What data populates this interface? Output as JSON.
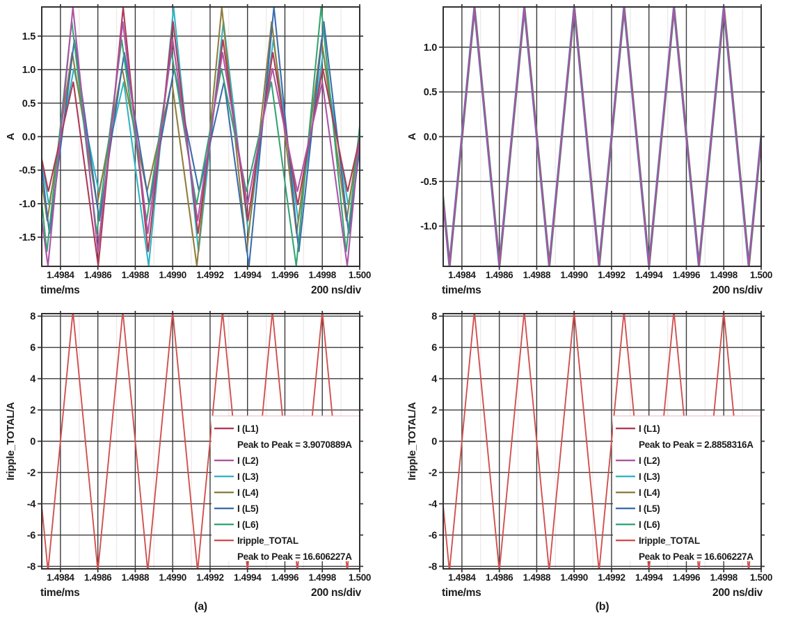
{
  "figure": {
    "background": "#ffffff"
  },
  "palette": {
    "L1": "#ae3a57",
    "L2": "#ab55a6",
    "L3": "#30b5c3",
    "L4": "#8f7e3e",
    "L5": "#3c6dad",
    "L6": "#35a474",
    "total": "#d0504e",
    "axis": "#303030",
    "grid_major": "#3a3a3a",
    "grid_minor": "#f0eaea",
    "text": "#1b1b1b",
    "legend_edge": "#edbcc0",
    "background": "#ffffff"
  },
  "axes_common": {
    "xlabel": "time/ms",
    "x_div_label": "200 ns/div",
    "xlim": [
      1.4983,
      1.5
    ],
    "xtick_values": [
      1.4984,
      1.4986,
      1.4988,
      1.499,
      1.4992,
      1.4994,
      1.4996,
      1.4998,
      1.5
    ],
    "xtick_labels": [
      "1.4984",
      "1.4986",
      "1.4988",
      "1.4990",
      "1.4992",
      "1.4994",
      "1.4996",
      "1.4998",
      "1.500"
    ],
    "minor_x": [
      1.4985,
      1.4987,
      1.4989,
      1.4991,
      1.4993,
      1.4995,
      1.4997,
      1.4999
    ]
  },
  "chart_data": [
    {
      "id": "phase-currents-mismatched",
      "type": "line",
      "position": "top-left",
      "ylabel": "A",
      "ylim": [
        -1.935,
        1.935
      ],
      "ytick_values": [
        1.5,
        1.0,
        0.5,
        0.0,
        -0.5,
        -1.0,
        -1.5
      ],
      "ytick_labels": [
        "1.5",
        "1.0",
        "0.5",
        "0.0",
        "-0.5",
        "-1.0",
        "-1.5"
      ],
      "waveform": {
        "kind": "triangle",
        "period_ms": 0.000266667,
        "valley_start_ms": 1.4983333,
        "amp_levels_rotation": [
          1.93,
          1.72,
          1.45,
          1.26,
          1.02,
          0.82
        ]
      },
      "series": [
        {
          "name": "I (L3)",
          "color_key": "L3",
          "cluster": 2,
          "offset_ns": 5
        },
        {
          "name": "I (L4)",
          "color_key": "L4",
          "cluster": 3,
          "offset_ns": -4
        },
        {
          "name": "I (L5)",
          "color_key": "L5",
          "cluster": 4,
          "offset_ns": 8
        },
        {
          "name": "I (L6)",
          "color_key": "L6",
          "cluster": 5,
          "offset_ns": -6
        },
        {
          "name": "I (L1)",
          "color_key": "L1",
          "cluster": 1,
          "offset_ns": 2
        },
        {
          "name": "I (L2)",
          "color_key": "L2",
          "cluster": 0,
          "offset_ns": 0
        }
      ]
    },
    {
      "id": "phase-currents-matched",
      "type": "line",
      "position": "top-right",
      "ylabel": "A",
      "ylim": [
        -1.45,
        1.45
      ],
      "ytick_values": [
        1.0,
        0.5,
        0.0,
        -0.5,
        -1.0
      ],
      "ytick_labels": [
        "1.0",
        "0.5",
        "0.0",
        "-0.5",
        "-1.0"
      ],
      "waveform": {
        "kind": "triangle",
        "period_ms": 0.000266667,
        "valley_start_ms": 1.4983333
      },
      "series": [
        {
          "name": "I (L3)",
          "color_key": "L3",
          "amp": 1.44,
          "offset_ns": -2
        },
        {
          "name": "I (L4)",
          "color_key": "L4",
          "amp": 1.44,
          "offset_ns": 2
        },
        {
          "name": "I (L5)",
          "color_key": "L5",
          "amp": 1.44,
          "offset_ns": -1
        },
        {
          "name": "I (L6)",
          "color_key": "L6",
          "amp": 1.44,
          "offset_ns": 3
        },
        {
          "name": "I (L1)",
          "color_key": "L1",
          "amp": 1.44,
          "offset_ns": 1
        },
        {
          "name": "I (L2)",
          "color_key": "L2",
          "amp": 1.44,
          "offset_ns": 0
        }
      ]
    },
    {
      "id": "total-ripple-mismatched",
      "type": "line",
      "position": "bottom-left",
      "ylabel": "Iripple_TOTAL/A",
      "caption": "(a)",
      "ylim": [
        -8.16,
        8.16
      ],
      "ytick_values": [
        8,
        6,
        4,
        2,
        0,
        -2,
        -4,
        -6,
        -8
      ],
      "ytick_labels": [
        "8",
        "6",
        "4",
        "2",
        "0",
        "-2",
        "-4",
        "-6",
        "-8"
      ],
      "waveform": {
        "kind": "triangle",
        "period_ms": 0.000266667,
        "valley_start_ms": 1.4983333
      },
      "series": [
        {
          "name": "Iripple_TOTAL",
          "color_key": "total",
          "amp": 8.303,
          "offset_ns": 0
        }
      ],
      "legend": {
        "x_value": 1.4992,
        "rows": [
          {
            "label": "I (L1)",
            "color_key": "L1"
          },
          {
            "label": "Peak to Peak = 3.9070889A"
          },
          {
            "label": "I (L2)",
            "color_key": "L2"
          },
          {
            "label": "I (L3)",
            "color_key": "L3"
          },
          {
            "label": "I (L4)",
            "color_key": "L4"
          },
          {
            "label": "I (L5)",
            "color_key": "L5"
          },
          {
            "label": "I (L6)",
            "color_key": "L6"
          },
          {
            "label": "Iripple_TOTAL",
            "color_key": "total"
          },
          {
            "label": "Peak to Peak = 16.606227A"
          }
        ]
      }
    },
    {
      "id": "total-ripple-matched",
      "type": "line",
      "position": "bottom-right",
      "ylabel": "Iripple_TOTAL/A",
      "caption": "(b)",
      "ylim": [
        -8.16,
        8.16
      ],
      "ytick_values": [
        8,
        6,
        4,
        2,
        0,
        -2,
        -4,
        -6,
        -8
      ],
      "ytick_labels": [
        "8",
        "6",
        "4",
        "2",
        "0",
        "-2",
        "-4",
        "-6",
        "-8"
      ],
      "waveform": {
        "kind": "triangle",
        "period_ms": 0.000266667,
        "valley_start_ms": 1.4983333
      },
      "series": [
        {
          "name": "Iripple_TOTAL",
          "color_key": "total",
          "amp": 8.303,
          "offset_ns": 0
        }
      ],
      "legend": {
        "x_value": 1.4992,
        "rows": [
          {
            "label": "I (L1)",
            "color_key": "L1"
          },
          {
            "label": "Peak to Peak = 2.8858316A"
          },
          {
            "label": "I (L2)",
            "color_key": "L2"
          },
          {
            "label": "I (L3)",
            "color_key": "L3"
          },
          {
            "label": "I (L4)",
            "color_key": "L4"
          },
          {
            "label": "I (L5)",
            "color_key": "L5"
          },
          {
            "label": "I (L6)",
            "color_key": "L6"
          },
          {
            "label": "Iripple_TOTAL",
            "color_key": "total"
          },
          {
            "label": "Peak to Peak = 16.606227A"
          }
        ]
      }
    }
  ]
}
